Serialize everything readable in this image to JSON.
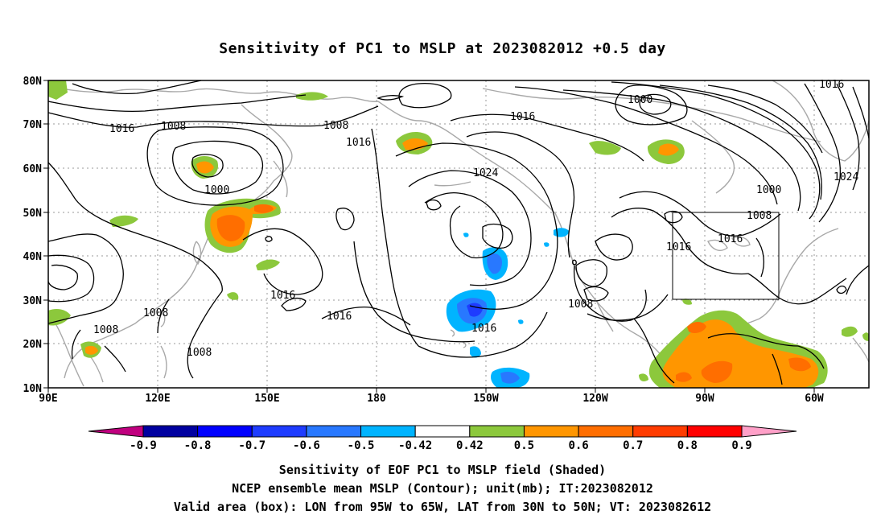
{
  "title": "Sensitivity of PC1 to MSLP at 2023082012 +0.5 day",
  "lat_labels": [
    "80N",
    "70N",
    "60N",
    "50N",
    "40N",
    "30N",
    "20N",
    "10N"
  ],
  "lon_labels": [
    "90E",
    "120E",
    "150E",
    "180",
    "150W",
    "120W",
    "90W",
    "60W"
  ],
  "contour_labels": [
    "1016",
    "1008",
    "1008",
    "1016",
    "1000",
    "1016",
    "1024",
    "1000",
    "1016",
    "1000",
    "1008",
    "1016",
    "1024",
    "1016",
    "1016",
    "1016",
    "1008",
    "1008",
    "1008",
    "1008",
    "1016"
  ],
  "colorbar": {
    "labels": [
      "-0.9",
      "-0.8",
      "-0.7",
      "-0.6",
      "-0.5",
      "-0.42",
      "0.42",
      "0.5",
      "0.6",
      "0.7",
      "0.8",
      "0.9"
    ],
    "colors": [
      "#c0007f",
      "#0000a0",
      "#0000ff",
      "#1e3cff",
      "#2878ff",
      "#00b4ff",
      "#ffffff",
      "#8cc83c",
      "#ff9600",
      "#ff6e00",
      "#ff3c00",
      "#ff0000",
      "#ffa0c8"
    ]
  },
  "captions": {
    "line1": "Sensitivity of EOF PC1 to MSLP field (Shaded)",
    "line2": "NCEP ensemble mean MSLP (Contour); unit(mb); IT:2023082012",
    "line3": "Valid area (box): LON from 95W to 65W, LAT from 30N to 50N; VT: 2023082612"
  }
}
